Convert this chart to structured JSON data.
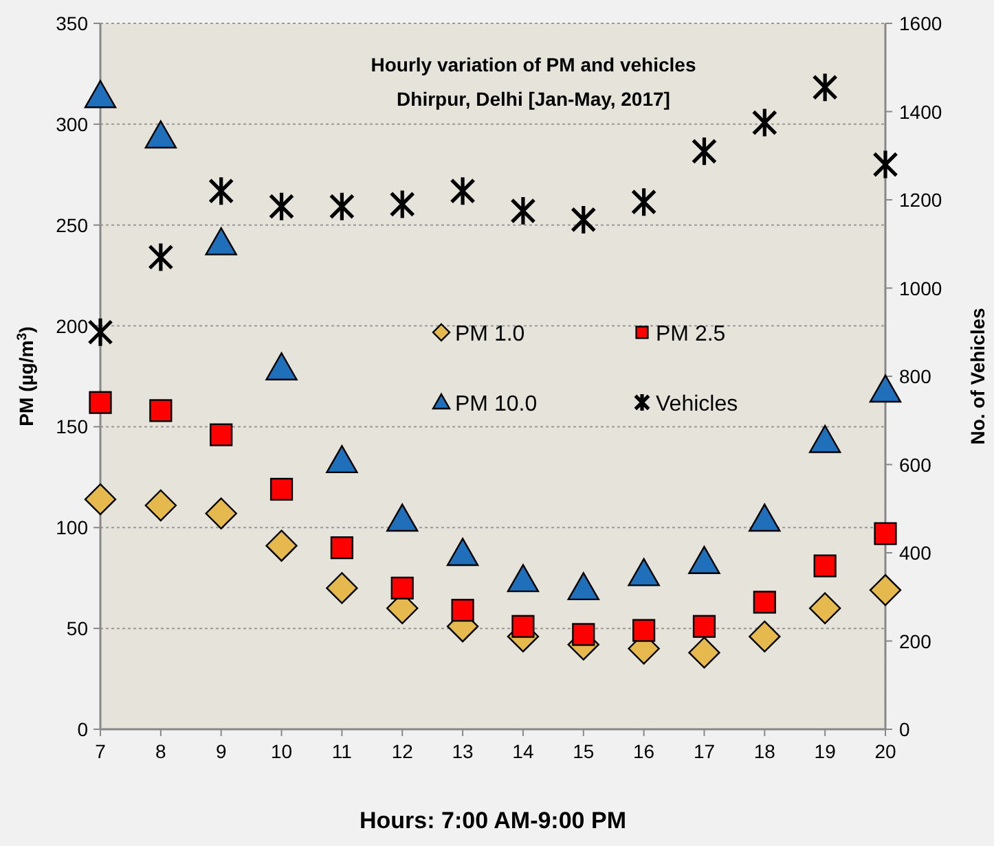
{
  "chart_data": {
    "type": "scatter",
    "title": "Hourly variation of PM and vehicles",
    "subtitle": "Dhirpur, Delhi [Jan-May, 2017]",
    "xlabel": "Hours: 7:00 AM-9:00 PM",
    "ylabel": "PM (µg/m$^{3}$)",
    "y2label": "No. of Vehicles",
    "x": [
      7,
      8,
      9,
      10,
      11,
      12,
      13,
      14,
      15,
      16,
      17,
      18,
      19,
      20
    ],
    "xlim": [
      7,
      20
    ],
    "xticks": [
      7,
      8,
      9,
      10,
      11,
      12,
      13,
      14,
      15,
      16,
      17,
      18,
      19,
      20
    ],
    "ylim": [
      0,
      350
    ],
    "yticks": [
      0,
      50,
      100,
      150,
      200,
      250,
      300,
      350
    ],
    "y2lim": [
      0,
      1600
    ],
    "y2ticks": [
      0,
      200,
      400,
      600,
      800,
      1000,
      1200,
      1400,
      1600
    ],
    "grid": "y",
    "legend": "right",
    "series": [
      {
        "name": "PM 1.0",
        "color": "#e6b94f",
        "marker": "diamond",
        "values": [
          114,
          111,
          107,
          91,
          70,
          60,
          51,
          46,
          42,
          40,
          38,
          46,
          60,
          69
        ]
      },
      {
        "name": "PM 2.5",
        "color": "#ff0000",
        "marker": "square",
        "values": [
          162,
          158,
          146,
          119,
          90,
          70,
          59,
          51,
          47,
          49,
          51,
          63,
          81,
          97
        ]
      },
      {
        "name": "PM 10.0",
        "color": "#1f6fba",
        "marker": "triangle",
        "values": [
          314,
          294,
          241,
          179,
          133,
          104,
          87,
          74,
          70,
          77,
          83,
          104,
          143,
          168
        ]
      },
      {
        "name": "Vehicles",
        "color": "#000000",
        "marker": "cross",
        "axis": "y2",
        "values": [
          900,
          1070,
          1220,
          1185,
          1185,
          1190,
          1220,
          1175,
          1155,
          1195,
          1310,
          1375,
          1455,
          1280
        ]
      }
    ]
  }
}
